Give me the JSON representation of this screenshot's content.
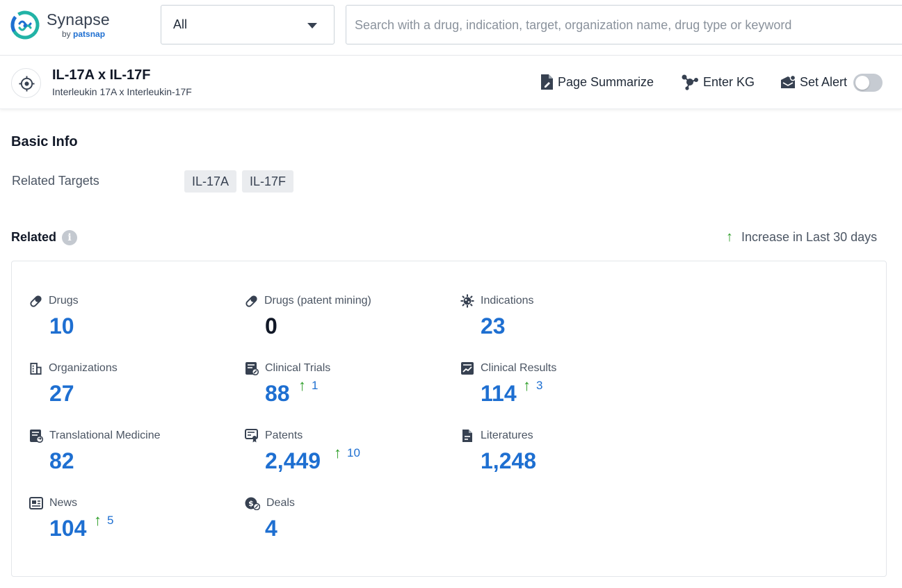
{
  "brand": {
    "name": "Synapse",
    "by_prefix": "by",
    "by_company": "patsnap",
    "colors": {
      "primary": "#1e6fd1",
      "increase": "#2e9e28",
      "logo_teal": "#22b3a6"
    }
  },
  "search": {
    "scope_value": "All",
    "placeholder": "Search with a drug, indication, target, organization name, drug type or keyword",
    "value": ""
  },
  "entity": {
    "title": "IL-17A x IL-17F",
    "subtitle": "Interleukin 17A x Interleukin-17F",
    "icon": "target-icon",
    "actions": {
      "summarize": "Page Summarize",
      "kg": "Enter KG",
      "alert": "Set Alert",
      "alert_enabled": false
    }
  },
  "basic_info": {
    "title": "Basic Info",
    "related_targets_label": "Related Targets",
    "targets": [
      "IL-17A",
      "IL-17F"
    ]
  },
  "related": {
    "title": "Related",
    "info_glyph": "i",
    "legend": "Increase in Last 30 days",
    "arrow_glyph": "↑",
    "items": [
      {
        "label": "Drugs",
        "value": "10",
        "increase": "",
        "icon": "pill-icon"
      },
      {
        "label": "Drugs (patent mining)",
        "value": "0",
        "increase": "",
        "icon": "pill-icon"
      },
      {
        "label": "Indications",
        "value": "23",
        "increase": "",
        "icon": "virus-icon"
      },
      {
        "label": "Organizations",
        "value": "27",
        "increase": "",
        "icon": "building-icon"
      },
      {
        "label": "Clinical Trials",
        "value": "88",
        "increase": "1",
        "icon": "clinical-trials-icon"
      },
      {
        "label": "Clinical Results",
        "value": "114",
        "increase": "3",
        "icon": "chart-document-icon"
      },
      {
        "label": "Translational Medicine",
        "value": "82",
        "increase": "",
        "icon": "translational-icon"
      },
      {
        "label": "Patents",
        "value": "2,449",
        "increase": "10",
        "icon": "patent-icon"
      },
      {
        "label": "Literatures",
        "value": "1,248",
        "increase": "",
        "icon": "document-icon"
      },
      {
        "label": "News",
        "value": "104",
        "increase": "5",
        "icon": "newspaper-icon"
      },
      {
        "label": "Deals",
        "value": "4",
        "increase": "",
        "icon": "deal-icon"
      }
    ]
  }
}
